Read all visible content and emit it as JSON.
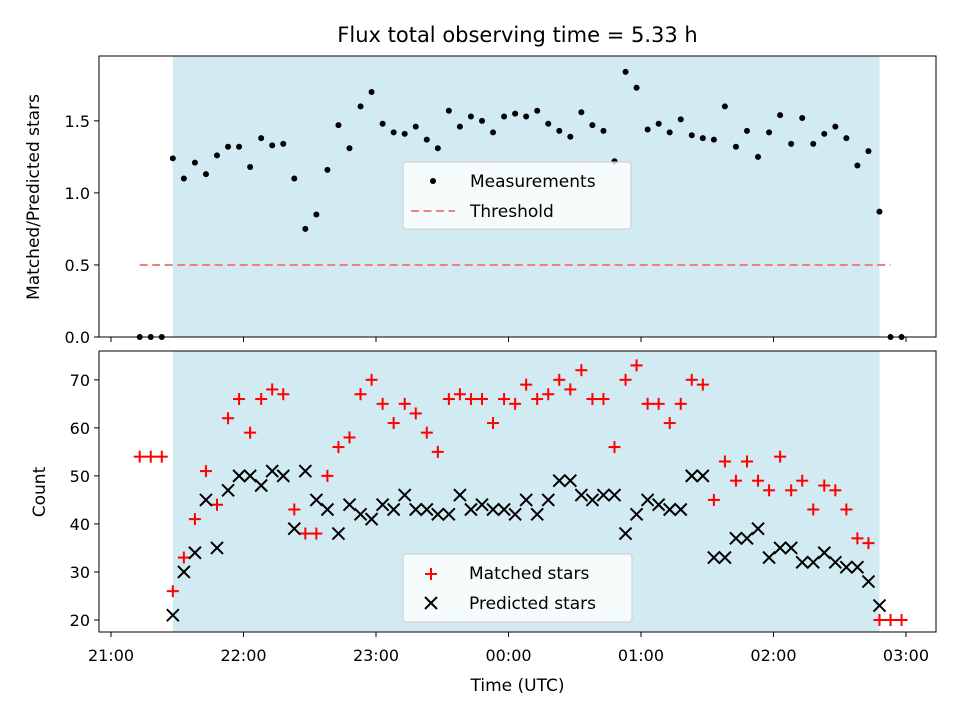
{
  "figure": {
    "title": "Flux total observing time = 5.33 h",
    "xlabel": "Time (UTC)",
    "x_ticks": [
      "21:00",
      "22:00",
      "23:00",
      "00:00",
      "01:00",
      "02:00",
      "03:00"
    ],
    "shaded_span": {
      "start": "21:28",
      "end": "02:48",
      "color": "#add8e6"
    }
  },
  "chart_data": [
    {
      "type": "scatter",
      "ylabel": "Matched/Predicted stars",
      "y_ticks": [
        "0.0",
        "0.5",
        "1.0",
        "1.5"
      ],
      "ylim": [
        0,
        1.95
      ],
      "legend": {
        "placement": "center",
        "entries": [
          "Measurements",
          "Threshold"
        ]
      },
      "threshold": {
        "name": "Threshold",
        "y": 0.5,
        "x_range": [
          "21:13",
          "02:53"
        ],
        "color": "#f08080",
        "style": "dashed"
      },
      "series": [
        {
          "name": "Measurements",
          "color": "#000000",
          "marker": "dot",
          "points": [
            [
              "21:13",
              0.0
            ],
            [
              "21:18",
              0.0
            ],
            [
              "21:23",
              0.0
            ],
            [
              "21:28",
              1.24
            ],
            [
              "21:33",
              1.1
            ],
            [
              "21:38",
              1.21
            ],
            [
              "21:43",
              1.13
            ],
            [
              "21:48",
              1.26
            ],
            [
              "21:53",
              1.32
            ],
            [
              "21:58",
              1.32
            ],
            [
              "22:03",
              1.18
            ],
            [
              "22:08",
              1.38
            ],
            [
              "22:13",
              1.33
            ],
            [
              "22:18",
              1.34
            ],
            [
              "22:23",
              1.1
            ],
            [
              "22:28",
              0.75
            ],
            [
              "22:33",
              0.85
            ],
            [
              "22:38",
              1.16
            ],
            [
              "22:43",
              1.47
            ],
            [
              "22:48",
              1.31
            ],
            [
              "22:53",
              1.6
            ],
            [
              "22:58",
              1.7
            ],
            [
              "23:03",
              1.48
            ],
            [
              "23:08",
              1.42
            ],
            [
              "23:13",
              1.41
            ],
            [
              "23:18",
              1.46
            ],
            [
              "23:23",
              1.37
            ],
            [
              "23:28",
              1.31
            ],
            [
              "23:33",
              1.57
            ],
            [
              "23:38",
              1.46
            ],
            [
              "23:43",
              1.53
            ],
            [
              "23:48",
              1.5
            ],
            [
              "23:53",
              1.42
            ],
            [
              "23:58",
              1.53
            ],
            [
              "00:03",
              1.55
            ],
            [
              "00:08",
              1.53
            ],
            [
              "00:13",
              1.57
            ],
            [
              "00:18",
              1.48
            ],
            [
              "00:23",
              1.43
            ],
            [
              "00:28",
              1.39
            ],
            [
              "00:33",
              1.56
            ],
            [
              "00:38",
              1.47
            ],
            [
              "00:43",
              1.43
            ],
            [
              "00:48",
              1.22
            ],
            [
              "00:53",
              1.84
            ],
            [
              "00:58",
              1.73
            ],
            [
              "01:03",
              1.44
            ],
            [
              "01:08",
              1.48
            ],
            [
              "01:13",
              1.42
            ],
            [
              "01:18",
              1.51
            ],
            [
              "01:23",
              1.4
            ],
            [
              "01:28",
              1.38
            ],
            [
              "01:33",
              1.37
            ],
            [
              "01:38",
              1.6
            ],
            [
              "01:43",
              1.32
            ],
            [
              "01:48",
              1.43
            ],
            [
              "01:53",
              1.25
            ],
            [
              "01:58",
              1.42
            ],
            [
              "02:03",
              1.54
            ],
            [
              "02:08",
              1.34
            ],
            [
              "02:13",
              1.52
            ],
            [
              "02:18",
              1.34
            ],
            [
              "02:23",
              1.41
            ],
            [
              "02:28",
              1.46
            ],
            [
              "02:33",
              1.38
            ],
            [
              "02:38",
              1.19
            ],
            [
              "02:43",
              1.29
            ],
            [
              "02:48",
              0.87
            ],
            [
              "02:53",
              0.0
            ],
            [
              "02:58",
              0.0
            ]
          ]
        }
      ]
    },
    {
      "type": "scatter",
      "ylabel": "Count",
      "y_ticks": [
        "20",
        "30",
        "40",
        "50",
        "60",
        "70"
      ],
      "ylim": [
        17.5,
        76
      ],
      "legend": {
        "placement": "lower center",
        "entries": [
          "Matched stars",
          "Predicted stars"
        ]
      },
      "series": [
        {
          "name": "Matched stars",
          "color": "#ff0000",
          "marker": "plus",
          "points": [
            [
              "21:13",
              54
            ],
            [
              "21:18",
              54
            ],
            [
              "21:23",
              54
            ],
            [
              "21:28",
              26
            ],
            [
              "21:33",
              33
            ],
            [
              "21:38",
              41
            ],
            [
              "21:43",
              51
            ],
            [
              "21:48",
              44
            ],
            [
              "21:53",
              62
            ],
            [
              "21:58",
              66
            ],
            [
              "22:03",
              59
            ],
            [
              "22:08",
              66
            ],
            [
              "22:13",
              68
            ],
            [
              "22:18",
              67
            ],
            [
              "22:23",
              43
            ],
            [
              "22:28",
              38
            ],
            [
              "22:33",
              38
            ],
            [
              "22:38",
              50
            ],
            [
              "22:43",
              56
            ],
            [
              "22:48",
              58
            ],
            [
              "22:53",
              67
            ],
            [
              "22:58",
              70
            ],
            [
              "23:03",
              65
            ],
            [
              "23:08",
              61
            ],
            [
              "23:13",
              65
            ],
            [
              "23:18",
              63
            ],
            [
              "23:23",
              59
            ],
            [
              "23:28",
              55
            ],
            [
              "23:33",
              66
            ],
            [
              "23:38",
              67
            ],
            [
              "23:43",
              66
            ],
            [
              "23:48",
              66
            ],
            [
              "23:53",
              61
            ],
            [
              "23:58",
              66
            ],
            [
              "00:03",
              65
            ],
            [
              "00:08",
              69
            ],
            [
              "00:13",
              66
            ],
            [
              "00:18",
              67
            ],
            [
              "00:23",
              70
            ],
            [
              "00:28",
              68
            ],
            [
              "00:33",
              72
            ],
            [
              "00:38",
              66
            ],
            [
              "00:43",
              66
            ],
            [
              "00:48",
              56
            ],
            [
              "00:53",
              70
            ],
            [
              "00:58",
              73
            ],
            [
              "01:03",
              65
            ],
            [
              "01:08",
              65
            ],
            [
              "01:13",
              61
            ],
            [
              "01:18",
              65
            ],
            [
              "01:23",
              70
            ],
            [
              "01:28",
              69
            ],
            [
              "01:33",
              45
            ],
            [
              "01:38",
              53
            ],
            [
              "01:43",
              49
            ],
            [
              "01:48",
              53
            ],
            [
              "01:53",
              49
            ],
            [
              "01:58",
              47
            ],
            [
              "02:03",
              54
            ],
            [
              "02:08",
              47
            ],
            [
              "02:13",
              49
            ],
            [
              "02:18",
              43
            ],
            [
              "02:23",
              48
            ],
            [
              "02:28",
              47
            ],
            [
              "02:33",
              43
            ],
            [
              "02:38",
              37
            ],
            [
              "02:43",
              36
            ],
            [
              "02:48",
              20
            ],
            [
              "02:53",
              20
            ],
            [
              "02:58",
              20
            ]
          ]
        },
        {
          "name": "Predicted stars",
          "color": "#000000",
          "marker": "x",
          "points": [
            [
              "21:28",
              21
            ],
            [
              "21:33",
              30
            ],
            [
              "21:38",
              34
            ],
            [
              "21:43",
              45
            ],
            [
              "21:48",
              35
            ],
            [
              "21:53",
              47
            ],
            [
              "21:58",
              50
            ],
            [
              "22:03",
              50
            ],
            [
              "22:08",
              48
            ],
            [
              "22:13",
              51
            ],
            [
              "22:18",
              50
            ],
            [
              "22:23",
              39
            ],
            [
              "22:28",
              51
            ],
            [
              "22:33",
              45
            ],
            [
              "22:38",
              43
            ],
            [
              "22:43",
              38
            ],
            [
              "22:48",
              44
            ],
            [
              "22:53",
              42
            ],
            [
              "22:58",
              41
            ],
            [
              "23:03",
              44
            ],
            [
              "23:08",
              43
            ],
            [
              "23:13",
              46
            ],
            [
              "23:18",
              43
            ],
            [
              "23:23",
              43
            ],
            [
              "23:28",
              42
            ],
            [
              "23:33",
              42
            ],
            [
              "23:38",
              46
            ],
            [
              "23:43",
              43
            ],
            [
              "23:48",
              44
            ],
            [
              "23:53",
              43
            ],
            [
              "23:58",
              43
            ],
            [
              "00:03",
              42
            ],
            [
              "00:08",
              45
            ],
            [
              "00:13",
              42
            ],
            [
              "00:18",
              45
            ],
            [
              "00:23",
              49
            ],
            [
              "00:28",
              49
            ],
            [
              "00:33",
              46
            ],
            [
              "00:38",
              45
            ],
            [
              "00:43",
              46
            ],
            [
              "00:48",
              46
            ],
            [
              "00:53",
              38
            ],
            [
              "00:58",
              42
            ],
            [
              "01:03",
              45
            ],
            [
              "01:08",
              44
            ],
            [
              "01:13",
              43
            ],
            [
              "01:18",
              43
            ],
            [
              "01:23",
              50
            ],
            [
              "01:28",
              50
            ],
            [
              "01:33",
              33
            ],
            [
              "01:38",
              33
            ],
            [
              "01:43",
              37
            ],
            [
              "01:48",
              37
            ],
            [
              "01:53",
              39
            ],
            [
              "01:58",
              33
            ],
            [
              "02:03",
              35
            ],
            [
              "02:08",
              35
            ],
            [
              "02:13",
              32
            ],
            [
              "02:18",
              32
            ],
            [
              "02:23",
              34
            ],
            [
              "02:28",
              32
            ],
            [
              "02:33",
              31
            ],
            [
              "02:38",
              31
            ],
            [
              "02:43",
              28
            ],
            [
              "02:48",
              23
            ]
          ]
        }
      ]
    }
  ]
}
